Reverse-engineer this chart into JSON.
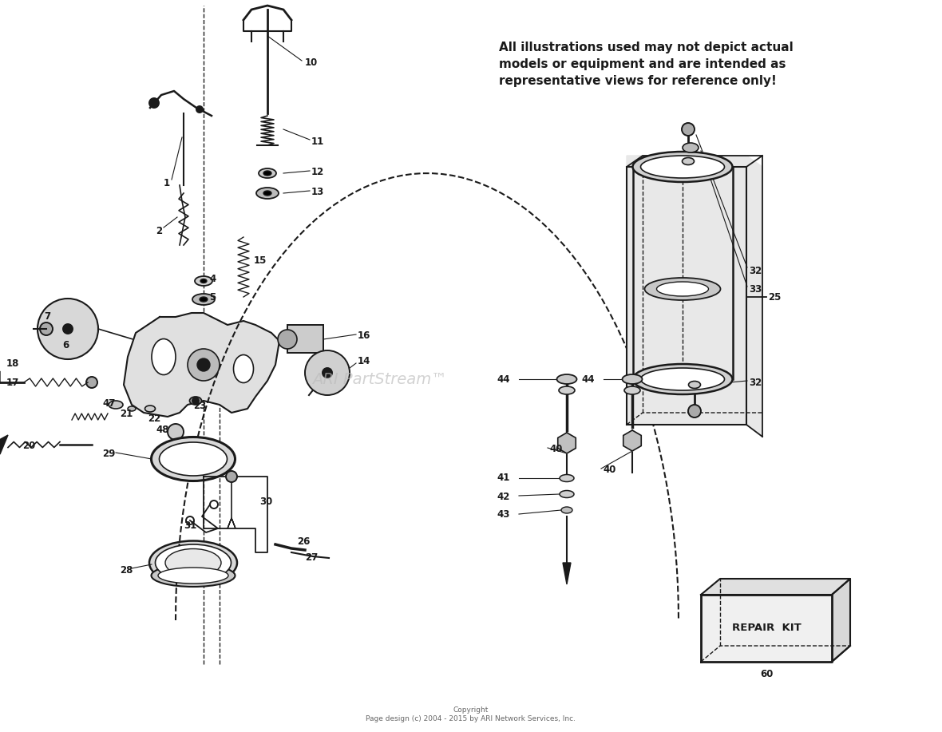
{
  "bg_color": "#ffffff",
  "watermark": "ARI PartStream™",
  "disclaimer": "All illustrations used may not depict actual\nmodels or equipment and are intended as\nrepresentative views for reference only!",
  "copyright": "Copyright\nPage design (c) 2004 - 2015 by ARI Network Services, Inc."
}
